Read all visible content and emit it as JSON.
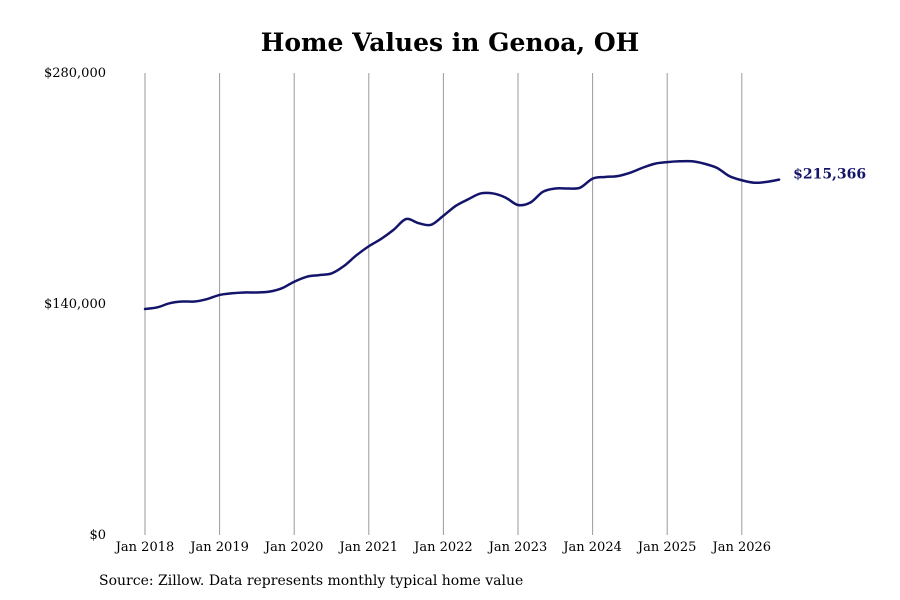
{
  "chart_data": {
    "type": "line",
    "title": "Home Values in Genoa, OH",
    "xlabel": "",
    "ylabel": "",
    "x_ticks": [
      "Jan 2018",
      "Jan 2019",
      "Jan 2020",
      "Jan 2021",
      "Jan 2022",
      "Jan 2023",
      "Jan 2024",
      "Jan 2025",
      "Jan 2026"
    ],
    "y_ticks": [
      0,
      140000,
      280000
    ],
    "y_tick_labels": [
      "$0",
      "$140,000",
      "$280,000"
    ],
    "ylim": [
      0,
      280000
    ],
    "x_range": [
      "2018-01",
      "2026-07"
    ],
    "grid": "vertical lines at January of each year",
    "line_color": "#14146b",
    "end_label": "$215,366",
    "series": [
      {
        "x": [
          "2018-01",
          "2018-03",
          "2018-05",
          "2018-07",
          "2018-09",
          "2018-11",
          "2019-01",
          "2019-03",
          "2019-05",
          "2019-07",
          "2019-09",
          "2019-11",
          "2020-01",
          "2020-03",
          "2020-05",
          "2020-07",
          "2020-09",
          "2020-11",
          "2021-01",
          "2021-03",
          "2021-05",
          "2021-07",
          "2021-09",
          "2021-11",
          "2022-01",
          "2022-03",
          "2022-05",
          "2022-07",
          "2022-09",
          "2022-11",
          "2023-01",
          "2023-03",
          "2023-05",
          "2023-07",
          "2023-09",
          "2023-11",
          "2024-01",
          "2024-03",
          "2024-05",
          "2024-07",
          "2024-09",
          "2024-11",
          "2025-01",
          "2025-03",
          "2025-05",
          "2025-07",
          "2025-09",
          "2025-11",
          "2026-01",
          "2026-03",
          "2026-05",
          "2026-07"
        ],
        "values": [
          137000,
          138000,
          140500,
          141500,
          141500,
          143000,
          145500,
          146500,
          147000,
          147000,
          147500,
          149500,
          153500,
          156500,
          157500,
          158500,
          163000,
          169500,
          175000,
          179500,
          185000,
          191500,
          189000,
          188000,
          193500,
          199500,
          203500,
          207000,
          207000,
          204500,
          200000,
          201500,
          208000,
          210000,
          210000,
          210500,
          216000,
          217000,
          217500,
          219500,
          222500,
          225000,
          226000,
          226500,
          226500,
          225000,
          222500,
          217500,
          215000,
          213500,
          214000,
          215366
        ]
      }
    ]
  },
  "source_note": "Source: Zillow. Data represents monthly typical home value"
}
